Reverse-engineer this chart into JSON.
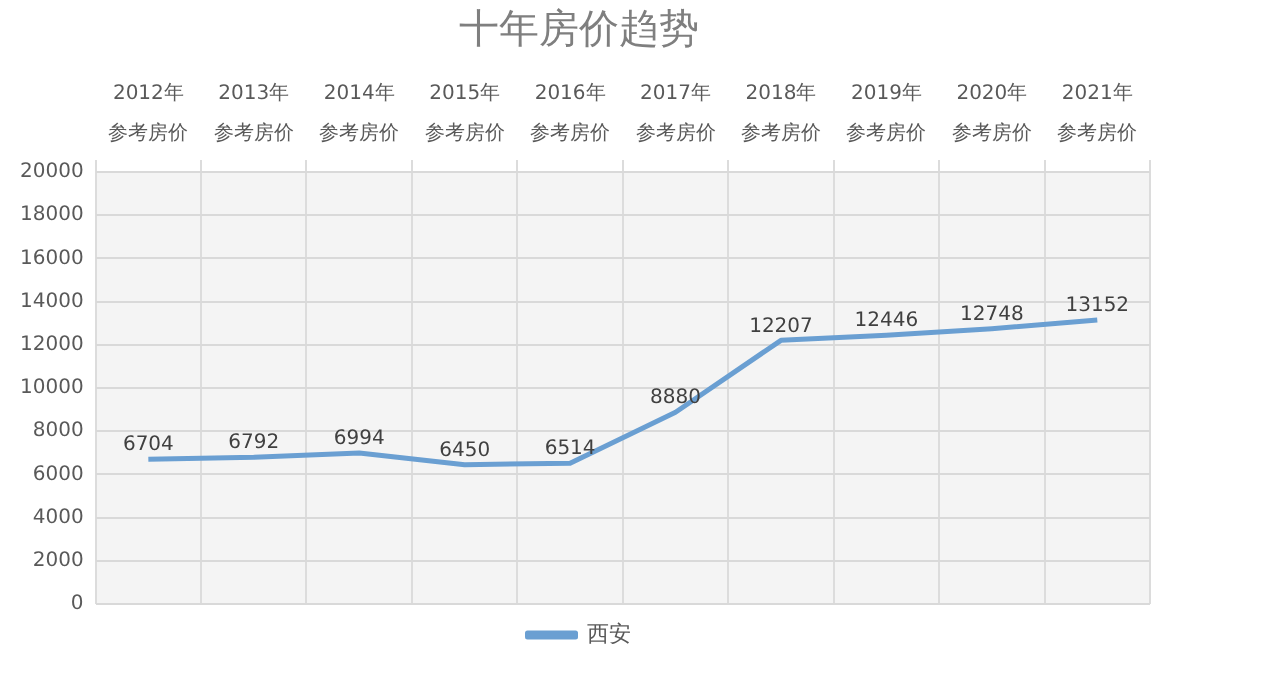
{
  "chart_data": {
    "type": "line",
    "title": "十年房价趋势",
    "categories": [
      "2012年参考房价",
      "2013年参考房价",
      "2014年参考房价",
      "2015年参考房价",
      "2016年参考房价",
      "2017年参考房价",
      "2018年参考房价",
      "2019年参考房价",
      "2020年参考房价",
      "2021年参考房价"
    ],
    "series": [
      {
        "name": "西安",
        "color": "#6a9fd2",
        "values": [
          6704,
          6792,
          6994,
          6450,
          6514,
          8880,
          12207,
          12446,
          12748,
          13152
        ]
      }
    ],
    "ylim": [
      0,
      20000
    ],
    "yticks": [
      0,
      2000,
      4000,
      6000,
      8000,
      10000,
      12000,
      14000,
      16000,
      18000,
      20000
    ],
    "grid": true,
    "legend": "bottom",
    "marker": "none",
    "line_style": "solid",
    "data_labels": true
  }
}
